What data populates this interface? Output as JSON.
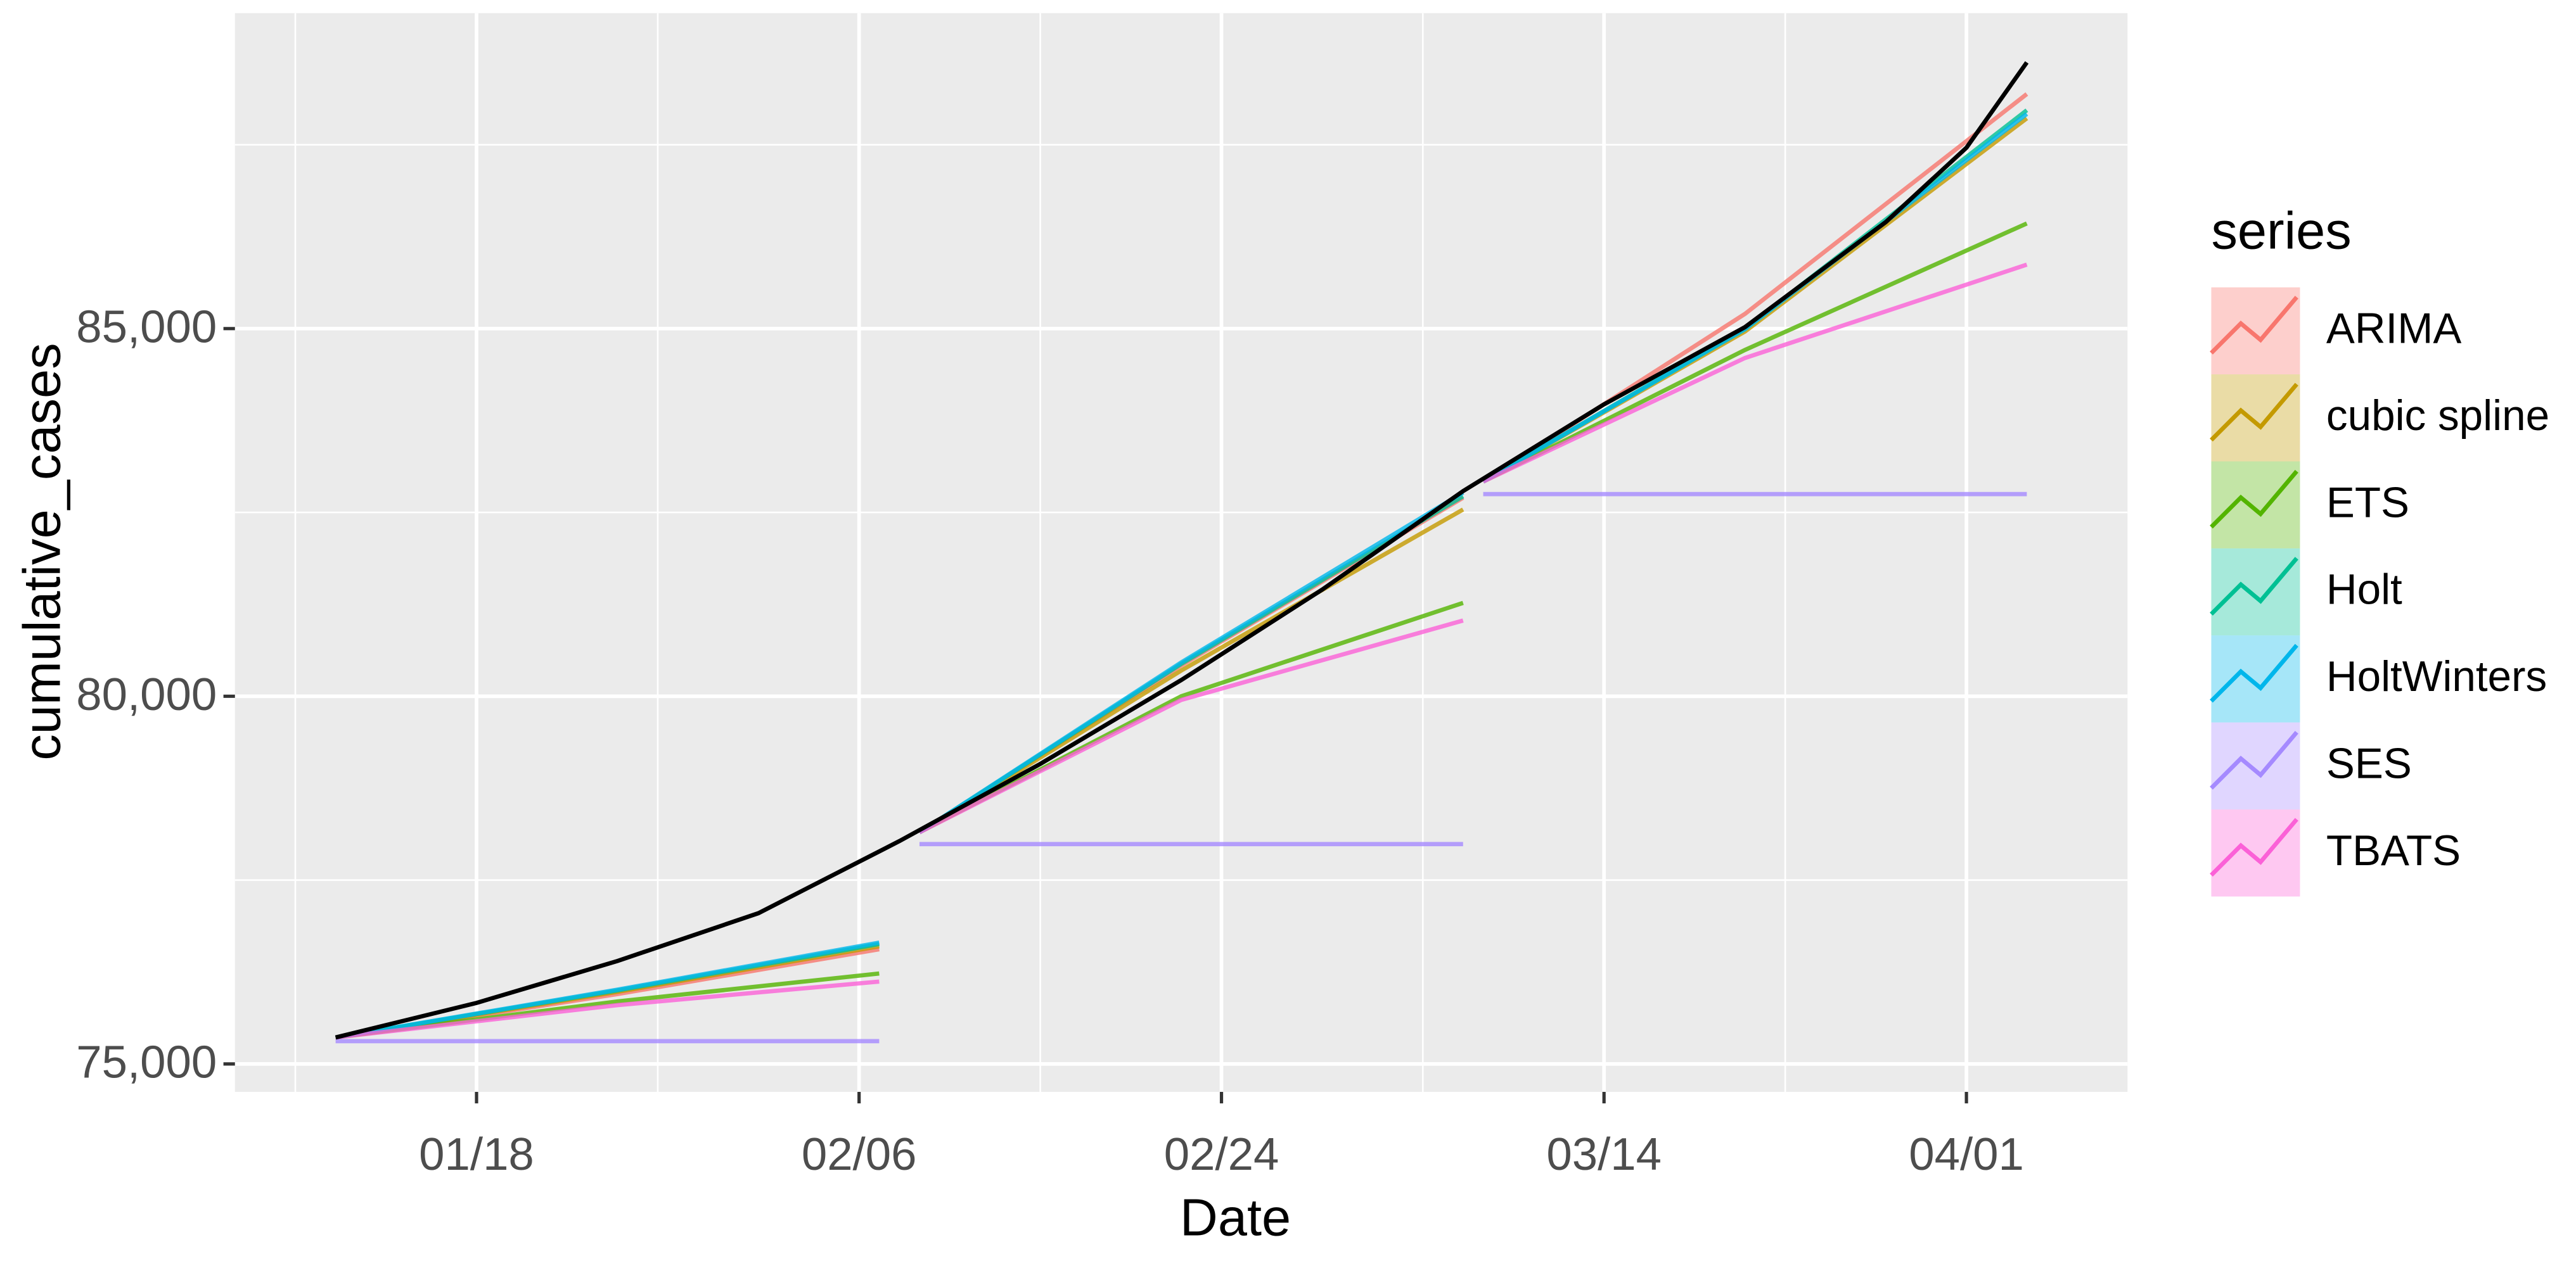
{
  "chart_data": {
    "type": "line",
    "x_label": "Date",
    "y_label": "cumulative_cases",
    "legend_title": "series",
    "xlim": [
      "01/06",
      "04/09"
    ],
    "xticks": [
      "01/18",
      "02/06",
      "02/24",
      "03/14",
      "04/01"
    ],
    "x_minor_ticks": [
      "01/09",
      "01/27",
      "02/15",
      "03/05",
      "03/23"
    ],
    "ylim": [
      74620,
      89290
    ],
    "yticks": [
      {
        "value": 75000,
        "label": "75,000"
      },
      {
        "value": 80000,
        "label": "80,000"
      },
      {
        "value": 85000,
        "label": "85,000"
      }
    ],
    "y_minor_ticks": [
      77500,
      82500,
      87500
    ],
    "grid": true,
    "legend": "right",
    "observed": {
      "color": "#000000",
      "x": [
        "01/11",
        "01/18",
        "01/25",
        "02/01",
        "02/08",
        "02/15",
        "02/22",
        "02/29",
        "03/07",
        "03/14",
        "03/21",
        "03/28",
        "04/01",
        "04/04"
      ],
      "values": [
        75360,
        75830,
        76400,
        77050,
        78030,
        79080,
        80220,
        81450,
        82790,
        83970,
        85020,
        86450,
        87460,
        88620
      ]
    },
    "series": [
      {
        "name": "ARIMA",
        "color": "#F8766D",
        "x": [
          "01/11",
          "01/25",
          "02/07",
          null,
          "02/09",
          "02/22",
          "03/07",
          null,
          "03/08",
          "03/21",
          "04/04"
        ],
        "values": [
          75360,
          75950,
          76560,
          null,
          78150,
          80420,
          82700,
          null,
          82920,
          85200,
          88190
        ]
      },
      {
        "name": "cubic spline",
        "color": "#C49A00",
        "x": [
          "01/11",
          "01/25",
          "02/07",
          null,
          "02/09",
          "02/22",
          "03/07",
          null,
          "03/08",
          "03/21",
          "04/04"
        ],
        "values": [
          75360,
          75980,
          76600,
          null,
          78150,
          80350,
          82540,
          null,
          82920,
          84960,
          87860
        ]
      },
      {
        "name": "ETS",
        "color": "#53B400",
        "x": [
          "01/11",
          "01/25",
          "02/07",
          null,
          "02/09",
          "02/22",
          "03/07",
          null,
          "03/08",
          "03/21",
          "04/04"
        ],
        "values": [
          75360,
          75850,
          76230,
          null,
          78150,
          80000,
          81270,
          null,
          82920,
          84710,
          86430
        ]
      },
      {
        "name": "Holt",
        "color": "#00C094",
        "x": [
          "01/11",
          "01/25",
          "02/07",
          null,
          "02/09",
          "02/22",
          "03/07",
          null,
          "03/08",
          "03/21",
          "04/04"
        ],
        "values": [
          75360,
          76000,
          76630,
          null,
          78150,
          80440,
          82720,
          null,
          82920,
          85000,
          87970
        ]
      },
      {
        "name": "HoltWinters",
        "color": "#00B6EB",
        "x": [
          "01/11",
          "01/25",
          "02/07",
          null,
          "02/09",
          "02/22",
          "03/07",
          null,
          "03/08",
          "03/21",
          "04/04"
        ],
        "values": [
          75360,
          76010,
          76650,
          null,
          78150,
          80460,
          82770,
          null,
          82920,
          84990,
          87920
        ]
      },
      {
        "name": "SES",
        "color": "#A58AFF",
        "x": [
          "01/11",
          "02/07",
          null,
          "02/09",
          "03/07",
          null,
          "03/08",
          "04/04"
        ],
        "values": [
          75310,
          75310,
          null,
          77990,
          77990,
          null,
          82750,
          82750
        ]
      },
      {
        "name": "TBATS",
        "color": "#FB61D7",
        "x": [
          "01/11",
          "01/25",
          "02/07",
          null,
          "02/09",
          "02/22",
          "03/07",
          null,
          "03/08",
          "03/21",
          "04/04"
        ],
        "values": [
          75360,
          75800,
          76120,
          null,
          78150,
          79950,
          81030,
          null,
          82920,
          84600,
          85870
        ]
      }
    ]
  }
}
